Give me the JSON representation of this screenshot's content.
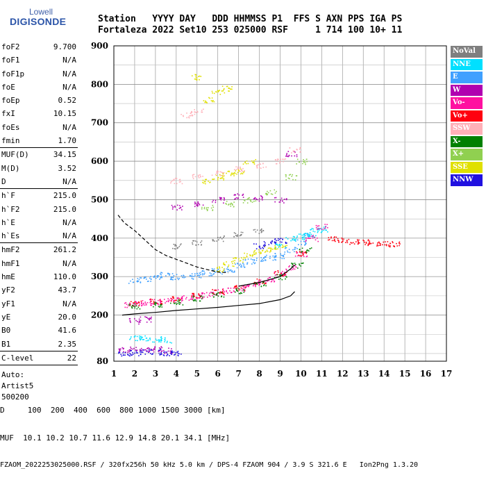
{
  "logo": {
    "line1": "Lowell",
    "line2": "DIGISONDE"
  },
  "header": {
    "line1": "Station   YYYY DAY   DDD HHMMSS P1  FFS S AXN PPS IGA PS",
    "line2": "Fortaleza 2022 Set10 253 025000 RSF     1 714 100 10+ 11"
  },
  "params": {
    "group1": [
      {
        "k": "foF2",
        "v": "9.700"
      },
      {
        "k": "foF1",
        "v": "N/A"
      },
      {
        "k": "foF1p",
        "v": "N/A"
      },
      {
        "k": "foE",
        "v": "N/A"
      },
      {
        "k": "foEp",
        "v": "0.52"
      },
      {
        "k": "fxI",
        "v": "10.15"
      },
      {
        "k": "foEs",
        "v": "N/A"
      },
      {
        "k": "fmin",
        "v": "1.70"
      }
    ],
    "group2": [
      {
        "k": "MUF(D)",
        "v": "34.15"
      },
      {
        "k": "M(D)",
        "v": "3.52"
      },
      {
        "k": "D",
        "v": "N/A"
      }
    ],
    "group3": [
      {
        "k": "h`F",
        "v": "215.0"
      },
      {
        "k": "h`F2",
        "v": "215.0"
      },
      {
        "k": "h`E",
        "v": "N/A"
      },
      {
        "k": "h`Es",
        "v": "N/A"
      }
    ],
    "group4": [
      {
        "k": "hmF2",
        "v": "261.2"
      },
      {
        "k": "hmF1",
        "v": "N/A"
      },
      {
        "k": "hmE",
        "v": "110.0"
      },
      {
        "k": "yF2",
        "v": "43.7"
      },
      {
        "k": "yF1",
        "v": "N/A"
      },
      {
        "k": "yE",
        "v": "20.0"
      },
      {
        "k": "B0",
        "v": "41.6"
      },
      {
        "k": "B1",
        "v": "2.35"
      }
    ],
    "group5": [
      {
        "k": "C-level",
        "v": "22"
      }
    ],
    "footer_lines": [
      "Auto:",
      "Artist5",
      "500200"
    ]
  },
  "legend": [
    {
      "label": "NoVal",
      "color": "#7f7f7f"
    },
    {
      "label": "NNE",
      "color": "#00e0ff"
    },
    {
      "label": "E",
      "color": "#3fa0ff"
    },
    {
      "label": "W",
      "color": "#b000b0"
    },
    {
      "label": "Vo-",
      "color": "#ff10a0"
    },
    {
      "label": "Vo+",
      "color": "#ff0010"
    },
    {
      "label": "SSW",
      "color": "#ffb0b8"
    },
    {
      "label": "X-",
      "color": "#008000"
    },
    {
      "label": "X+",
      "color": "#90d050"
    },
    {
      "label": "SSE",
      "color": "#e0e000"
    },
    {
      "label": "NNW",
      "color": "#2010e0"
    }
  ],
  "footer": {
    "line1": "D     100  200  400  600  800 1000 1500 3000 [km]",
    "line2": "MUF  10.1 10.2 10.7 11.6 12.9 14.8 20.1 34.1 [MHz]",
    "line3": "FZAOM_2022253025000.RSF / 320fx256h 50 kHz 5.0 km / DPS-4 FZAOM 904 / 3.9 S 321.6 E   Ion2Png 1.3.20"
  },
  "chart_data": {
    "type": "scatter",
    "title": "",
    "xlabel": "",
    "ylabel": "",
    "xlim": [
      1,
      17
    ],
    "ylim": [
      80,
      900
    ],
    "xticks": [
      1,
      2,
      3,
      4,
      5,
      6,
      7,
      8,
      9,
      10,
      11,
      12,
      13,
      14,
      15,
      16,
      17
    ],
    "yticks": [
      80,
      200,
      300,
      400,
      500,
      600,
      700,
      800,
      900
    ],
    "grid": true,
    "legend_position": "right",
    "series": [
      {
        "name": "E",
        "color": "#3fa0ff",
        "points": [
          [
            2.0,
            290
          ],
          [
            2.5,
            295
          ],
          [
            3.0,
            300
          ],
          [
            3.5,
            305
          ],
          [
            4.0,
            300
          ],
          [
            4.5,
            302
          ],
          [
            5.0,
            305
          ],
          [
            5.5,
            310
          ],
          [
            6.0,
            315
          ],
          [
            6.5,
            320
          ],
          [
            7.0,
            330
          ],
          [
            7.5,
            340
          ],
          [
            8.0,
            345
          ],
          [
            8.5,
            350
          ],
          [
            9.0,
            355
          ],
          [
            9.5,
            370
          ],
          [
            10.0,
            390
          ],
          [
            10.3,
            410
          ]
        ]
      },
      {
        "name": "NNE",
        "color": "#00e0ff",
        "points": [
          [
            9.0,
            380
          ],
          [
            9.5,
            400
          ],
          [
            10.0,
            405
          ],
          [
            10.4,
            410
          ],
          [
            10.7,
            420
          ],
          [
            11.0,
            425
          ],
          [
            2.0,
            140
          ],
          [
            2.5,
            140
          ],
          [
            3.0,
            138
          ],
          [
            3.5,
            135
          ]
        ]
      },
      {
        "name": "Vo-",
        "color": "#ff10a0",
        "points": [
          [
            1.8,
            228
          ],
          [
            2.2,
            230
          ],
          [
            2.6,
            232
          ],
          [
            3.0,
            235
          ],
          [
            3.5,
            238
          ],
          [
            4.0,
            240
          ],
          [
            4.5,
            245
          ],
          [
            5.0,
            250
          ],
          [
            5.5,
            255
          ],
          [
            6.0,
            260
          ],
          [
            6.5,
            265
          ],
          [
            7.0,
            270
          ],
          [
            7.5,
            278
          ],
          [
            8.0,
            285
          ],
          [
            8.5,
            295
          ],
          [
            9.0,
            308
          ],
          [
            9.5,
            325
          ],
          [
            10.0,
            360
          ],
          [
            10.5,
            400
          ],
          [
            11.0,
            430
          ]
        ]
      },
      {
        "name": "Vo+",
        "color": "#ff0010",
        "points": [
          [
            2.0,
            232
          ],
          [
            3.0,
            236
          ],
          [
            4.0,
            242
          ],
          [
            5.0,
            252
          ],
          [
            6.0,
            262
          ],
          [
            7.0,
            272
          ],
          [
            8.0,
            288
          ],
          [
            9.0,
            310
          ],
          [
            10.0,
            362
          ],
          [
            11.5,
            400
          ],
          [
            12.0,
            396
          ],
          [
            12.5,
            392
          ],
          [
            13.0,
            390
          ],
          [
            13.5,
            388
          ],
          [
            14.0,
            386
          ],
          [
            14.5,
            385
          ]
        ]
      },
      {
        "name": "X-",
        "color": "#008000",
        "points": [
          [
            2.0,
            224
          ],
          [
            3.0,
            228
          ],
          [
            4.0,
            234
          ],
          [
            5.0,
            244
          ],
          [
            6.0,
            254
          ],
          [
            7.0,
            264
          ],
          [
            8.0,
            280
          ],
          [
            9.0,
            300
          ],
          [
            9.8,
            330
          ],
          [
            10.2,
            370
          ]
        ]
      },
      {
        "name": "SSE",
        "color": "#e0e000",
        "points": [
          [
            6.0,
            320
          ],
          [
            6.5,
            335
          ],
          [
            7.0,
            345
          ],
          [
            7.5,
            355
          ],
          [
            8.0,
            365
          ],
          [
            8.5,
            372
          ],
          [
            9.0,
            378
          ],
          [
            5.5,
            550
          ],
          [
            6.0,
            560
          ],
          [
            6.5,
            570
          ],
          [
            7.0,
            575
          ],
          [
            7.5,
            600
          ],
          [
            5.5,
            760
          ],
          [
            6.0,
            780
          ],
          [
            6.5,
            790
          ],
          [
            5.0,
            820
          ]
        ]
      },
      {
        "name": "W",
        "color": "#b000b0",
        "points": [
          [
            1.5,
            110
          ],
          [
            2.0,
            112
          ],
          [
            2.5,
            110
          ],
          [
            3.0,
            112
          ],
          [
            3.5,
            108
          ],
          [
            2.0,
            185
          ],
          [
            2.5,
            190
          ],
          [
            4.0,
            480
          ],
          [
            5.0,
            490
          ],
          [
            6.0,
            500
          ],
          [
            7.0,
            510
          ],
          [
            8.0,
            505
          ],
          [
            9.0,
            500
          ],
          [
            9.5,
            620
          ]
        ]
      },
      {
        "name": "SSW",
        "color": "#ffb0b8",
        "points": [
          [
            4.0,
            550
          ],
          [
            5.0,
            560
          ],
          [
            6.0,
            570
          ],
          [
            7.0,
            580
          ],
          [
            8.0,
            590
          ],
          [
            9.0,
            600
          ],
          [
            9.7,
            630
          ],
          [
            4.5,
            720
          ],
          [
            5.0,
            730
          ]
        ]
      },
      {
        "name": "NNW",
        "color": "#2010e0",
        "points": [
          [
            1.5,
            100
          ],
          [
            2.0,
            102
          ],
          [
            2.5,
            104
          ],
          [
            3.0,
            105
          ],
          [
            3.5,
            103
          ],
          [
            4.0,
            100
          ],
          [
            8.0,
            380
          ],
          [
            8.5,
            390
          ],
          [
            9.0,
            395
          ]
        ]
      },
      {
        "name": "X+",
        "color": "#90d050",
        "points": [
          [
            5.5,
            480
          ],
          [
            6.5,
            490
          ],
          [
            7.5,
            500
          ],
          [
            8.5,
            520
          ],
          [
            9.5,
            560
          ],
          [
            10.0,
            600
          ]
        ]
      },
      {
        "name": "NoVal",
        "color": "#7f7f7f",
        "points": [
          [
            4.0,
            380
          ],
          [
            5.0,
            390
          ],
          [
            6.0,
            400
          ],
          [
            7.0,
            410
          ],
          [
            8.0,
            420
          ]
        ]
      }
    ],
    "curves": [
      {
        "name": "profile",
        "style": "solid",
        "color": "#000000",
        "points": [
          [
            1.4,
            200
          ],
          [
            2.0,
            203
          ],
          [
            3.0,
            207
          ],
          [
            4.0,
            212
          ],
          [
            5.0,
            216
          ],
          [
            6.0,
            220
          ],
          [
            7.0,
            225
          ],
          [
            8.0,
            230
          ],
          [
            9.0,
            240
          ],
          [
            9.5,
            250
          ],
          [
            9.7,
            261
          ]
        ]
      },
      {
        "name": "profile-upper",
        "style": "solid",
        "color": "#000000",
        "points": [
          [
            7.0,
            275
          ],
          [
            8.0,
            285
          ],
          [
            9.0,
            300
          ],
          [
            9.5,
            320
          ],
          [
            9.7,
            330
          ]
        ]
      },
      {
        "name": "dashed-profile",
        "style": "dashed",
        "color": "#000000",
        "points": [
          [
            1.2,
            460
          ],
          [
            1.5,
            440
          ],
          [
            2.0,
            420
          ],
          [
            2.5,
            395
          ],
          [
            3.0,
            370
          ],
          [
            3.5,
            355
          ],
          [
            4.0,
            345
          ],
          [
            4.5,
            335
          ],
          [
            5.0,
            325
          ],
          [
            5.5,
            318
          ],
          [
            6.0,
            312
          ],
          [
            6.5,
            310
          ]
        ]
      }
    ]
  }
}
